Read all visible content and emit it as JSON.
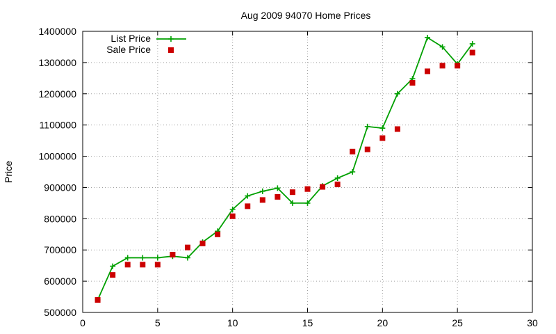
{
  "chart_data": {
    "type": "line",
    "title": "Aug 2009 94070 Home Prices",
    "xlabel": "",
    "ylabel": "Price",
    "xlim": [
      0,
      30
    ],
    "ylim": [
      500000,
      1400000
    ],
    "xticks": [
      0,
      5,
      10,
      15,
      20,
      25,
      30
    ],
    "yticks": [
      500000,
      600000,
      700000,
      800000,
      900000,
      1000000,
      1100000,
      1200000,
      1300000,
      1400000
    ],
    "grid": true,
    "legend_position": "top-left",
    "x": [
      1,
      2,
      3,
      4,
      5,
      6,
      7,
      8,
      9,
      10,
      11,
      12,
      13,
      14,
      15,
      16,
      17,
      18,
      19,
      20,
      21,
      22,
      23,
      24,
      25,
      26
    ],
    "series": [
      {
        "name": "List Price",
        "style": "linespoints",
        "marker": "plus",
        "color": "#00a000",
        "values": [
          540000,
          648000,
          675000,
          675000,
          675000,
          680000,
          675000,
          725000,
          760000,
          830000,
          873000,
          888000,
          898000,
          850000,
          850000,
          905000,
          930000,
          950000,
          1095000,
          1090000,
          1200000,
          1248000,
          1380000,
          1350000,
          1295000,
          1360000
        ]
      },
      {
        "name": "Sale Price",
        "style": "points",
        "marker": "square",
        "color": "#cc0000",
        "values": [
          540000,
          620000,
          653000,
          653000,
          653000,
          685000,
          708000,
          721000,
          750000,
          808000,
          840000,
          860000,
          870000,
          885000,
          895000,
          902000,
          910000,
          1015000,
          1022000,
          1058000,
          1087000,
          1235000,
          1272000,
          1290000,
          1290000,
          1332000
        ]
      }
    ]
  }
}
